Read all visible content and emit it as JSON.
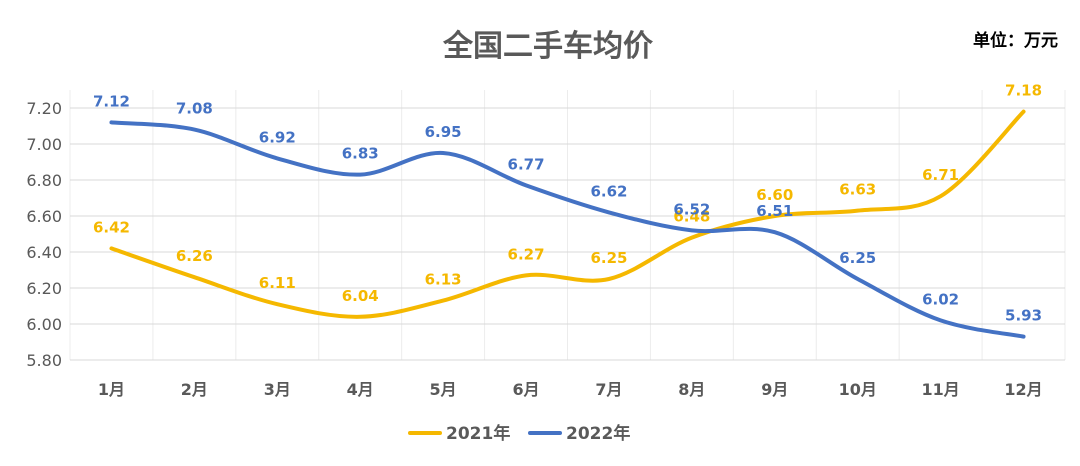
{
  "chart_data": {
    "type": "line",
    "title": "全国二手车均价",
    "unit_label": "单位：万元",
    "categories": [
      "1月",
      "2月",
      "3月",
      "4月",
      "5月",
      "6月",
      "7月",
      "8月",
      "9月",
      "10月",
      "11月",
      "12月"
    ],
    "series": [
      {
        "name": "2021年",
        "color": "#F5B800",
        "values": [
          6.42,
          6.26,
          6.11,
          6.04,
          6.13,
          6.27,
          6.25,
          6.48,
          6.6,
          6.63,
          6.71,
          7.18
        ]
      },
      {
        "name": "2022年",
        "color": "#4472C4",
        "values": [
          7.12,
          7.08,
          6.92,
          6.83,
          6.95,
          6.77,
          6.62,
          6.52,
          6.51,
          6.25,
          6.02,
          5.93
        ]
      }
    ],
    "yticks": [
      "5.80",
      "6.00",
      "6.20",
      "6.40",
      "6.60",
      "6.80",
      "7.00",
      "7.20"
    ],
    "ylim": [
      5.8,
      7.3
    ],
    "grid": true,
    "legend_position": "bottom",
    "smooth": true
  }
}
